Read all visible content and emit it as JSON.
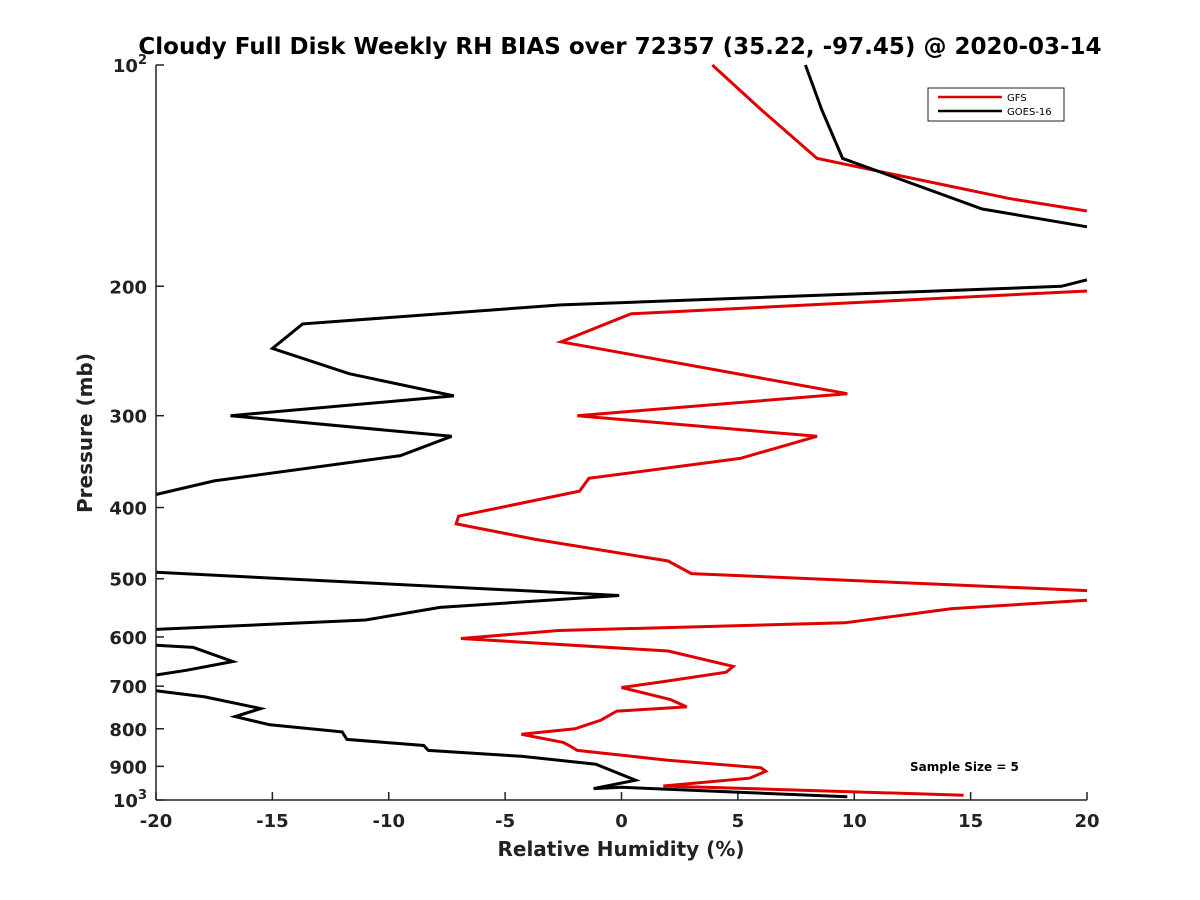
{
  "chart_data": {
    "type": "line",
    "title": "Cloudy Full Disk Weekly RH BIAS over 72357 (35.22, -97.45) @ 2020-03-14",
    "xlabel": "Relative Humidity (%)",
    "ylabel": "Pressure (mb)",
    "xlim": [
      -20,
      20
    ],
    "ylim": [
      100,
      1000
    ],
    "y_scale": "log",
    "y_reversed": true,
    "grid": false,
    "legend_position": "top-right",
    "x_ticks": [
      "-20",
      "-15",
      "-10",
      "-5",
      "0",
      "5",
      "10",
      "15",
      "20"
    ],
    "y_ticks": [
      {
        "value": 100,
        "base": "10",
        "exp": "2"
      },
      {
        "value": 200,
        "label": "200"
      },
      {
        "value": 300,
        "label": "300"
      },
      {
        "value": 400,
        "label": "400"
      },
      {
        "value": 500,
        "label": "500"
      },
      {
        "value": 600,
        "label": "600"
      },
      {
        "value": 700,
        "label": "700"
      },
      {
        "value": 800,
        "label": "800"
      },
      {
        "value": 900,
        "label": "900"
      },
      {
        "value": 1000,
        "base": "10",
        "exp": "3"
      }
    ],
    "annotation": "Sample Size = 5",
    "series": [
      {
        "name": "GFS",
        "color": "#e00000",
        "points": [
          [
            3.9,
            100
          ],
          [
            6.0,
            115
          ],
          [
            8.4,
            134
          ],
          [
            16.7,
            152
          ],
          [
            20.0,
            158
          ],
          [
            null,
            null
          ],
          [
            20.0,
            203
          ],
          [
            0.4,
            218
          ],
          [
            -2.6,
            238
          ],
          [
            9.7,
            280
          ],
          [
            -1.9,
            300
          ],
          [
            8.4,
            320
          ],
          [
            5.1,
            343
          ],
          [
            -1.4,
            365
          ],
          [
            -1.8,
            380
          ],
          [
            -7.0,
            411
          ],
          [
            -7.1,
            421
          ],
          [
            -3.7,
            442
          ],
          [
            2.0,
            473
          ],
          [
            3.0,
            492
          ],
          [
            20.0,
            519
          ],
          [
            null,
            null
          ],
          [
            20.0,
            535
          ],
          [
            14.2,
            549
          ],
          [
            9.6,
            574
          ],
          [
            -2.7,
            588
          ],
          [
            -6.9,
            603
          ],
          [
            2.0,
            627
          ],
          [
            4.8,
            658
          ],
          [
            4.5,
            670
          ],
          [
            1.8,
            690
          ],
          [
            0.0,
            703
          ],
          [
            2.1,
            730
          ],
          [
            2.8,
            747
          ],
          [
            -0.2,
            757
          ],
          [
            -0.9,
            779
          ],
          [
            -2.0,
            800
          ],
          [
            -4.3,
            814
          ],
          [
            -2.5,
            835
          ],
          [
            -2.2,
            845
          ],
          [
            -1.9,
            856
          ],
          [
            2.0,
            883
          ],
          [
            6.0,
            904
          ],
          [
            6.2,
            914
          ],
          [
            5.5,
            934
          ],
          [
            1.8,
            957
          ],
          [
            14.7,
            985
          ]
        ]
      },
      {
        "name": "GOES-16",
        "color": "#000000",
        "points": [
          [
            7.9,
            100
          ],
          [
            8.6,
            115
          ],
          [
            9.5,
            134
          ],
          [
            15.5,
            157
          ],
          [
            20.0,
            166
          ],
          [
            null,
            null
          ],
          [
            20.0,
            196
          ],
          [
            18.9,
            200
          ],
          [
            -2.6,
            212
          ],
          [
            -13.7,
            225
          ],
          [
            -15.0,
            243
          ],
          [
            -11.7,
            263
          ],
          [
            -7.2,
            282
          ],
          [
            -16.8,
            300
          ],
          [
            -7.3,
            320
          ],
          [
            -9.5,
            340
          ],
          [
            -17.5,
            368
          ],
          [
            -20.0,
            384
          ],
          [
            null,
            null
          ],
          [
            -20.0,
            490
          ],
          [
            -0.1,
            527
          ],
          [
            -7.8,
            547
          ],
          [
            -11.0,
            569
          ],
          [
            -20.0,
            586
          ],
          [
            null,
            null
          ],
          [
            -20.0,
            616
          ],
          [
            -18.4,
            620
          ],
          [
            -16.7,
            648
          ],
          [
            -18.7,
            666
          ],
          [
            -20.0,
            676
          ],
          [
            null,
            null
          ],
          [
            -20.0,
            710
          ],
          [
            -17.9,
            724
          ],
          [
            -15.5,
            751
          ],
          [
            -16.6,
            770
          ],
          [
            -15.1,
            790
          ],
          [
            -12.0,
            808
          ],
          [
            -11.8,
            827
          ],
          [
            -8.5,
            843
          ],
          [
            -8.3,
            856
          ],
          [
            -4.3,
            872
          ],
          [
            -1.1,
            894
          ],
          [
            0.6,
            940
          ],
          [
            -1.2,
            965
          ],
          [
            0.0,
            961
          ],
          [
            9.7,
            990
          ]
        ]
      }
    ]
  }
}
